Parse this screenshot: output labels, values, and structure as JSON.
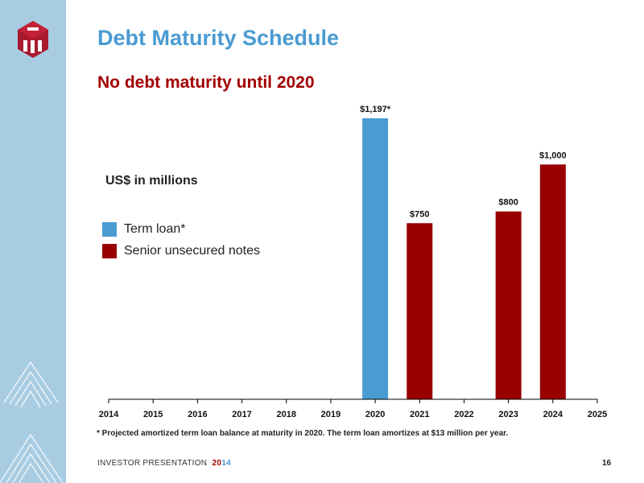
{
  "title": "Debt Maturity Schedule",
  "subtitle": "No debt maturity until 2020",
  "units": "US$ in millions",
  "legend": [
    {
      "label": "Term loan*",
      "color": "#4a9bd2"
    },
    {
      "label": "Senior unsecured notes",
      "color": "#990000"
    }
  ],
  "footnote": "* Projected amortized term loan balance at maturity in 2020. The term loan amortizes at $13 million per year.",
  "footer": {
    "label": "INVESTOR PRESENTATION",
    "year_part1": "20",
    "year_part2": "14",
    "page": "16"
  },
  "chart_data": {
    "type": "bar",
    "categories": [
      "2014",
      "2015",
      "2016",
      "2017",
      "2018",
      "2019",
      "2020",
      "2021",
      "2022",
      "2023",
      "2024",
      "2025"
    ],
    "series": [
      {
        "name": "Term loan*",
        "color": "#4a9bd2",
        "values": [
          null,
          null,
          null,
          null,
          null,
          null,
          1197,
          null,
          null,
          null,
          null,
          null
        ]
      },
      {
        "name": "Senior unsecured notes",
        "color": "#990000",
        "values": [
          null,
          null,
          null,
          null,
          null,
          null,
          null,
          750,
          null,
          800,
          1000,
          null
        ]
      }
    ],
    "data_labels": {
      "2020": "$1,197*",
      "2021": "$750",
      "2023": "$800",
      "2024": "$1,000"
    },
    "xlabel": "",
    "ylabel": "",
    "ylim": [
      0,
      1200
    ],
    "grid": false
  }
}
